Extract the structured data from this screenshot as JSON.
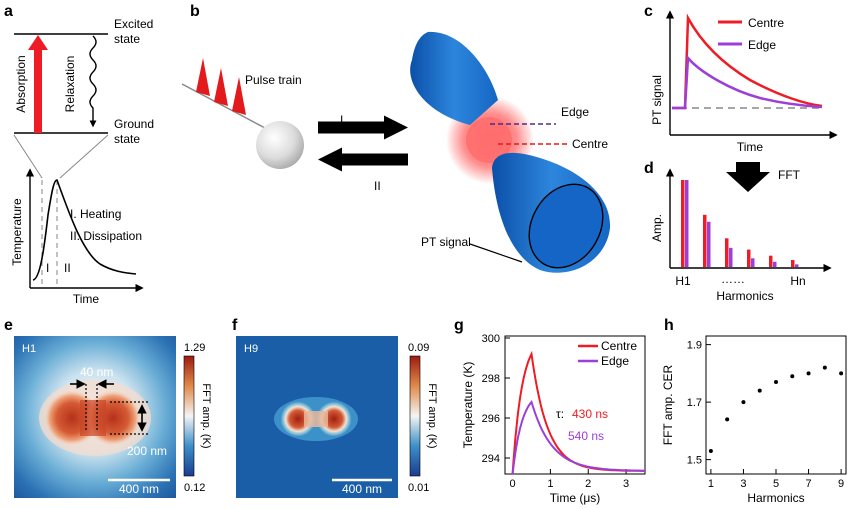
{
  "panels": {
    "a": "a",
    "b": "b",
    "c": "c",
    "d": "d",
    "e": "e",
    "f": "f",
    "g": "g",
    "h": "h"
  },
  "a": {
    "excited_1": "Excited",
    "excited_2": "state",
    "ground_1": "Ground",
    "ground_2": "state",
    "absorption": "Absorption",
    "relaxation": "Relaxation",
    "ylabel": "Temperature",
    "xlabel": "Time",
    "heating": "I. Heating",
    "dissipation": "II. Dissipation",
    "mark1": "I",
    "mark2": "II"
  },
  "b": {
    "pulse_train": "Pulse train",
    "arrow1": "I",
    "arrow2": "II",
    "edge": "Edge",
    "centre": "Centre",
    "pt_signal": "PT signal"
  },
  "c": {
    "ylabel": "PT signal",
    "xlabel": "Time",
    "series": [
      {
        "name": "Centre",
        "color": "#ee1c25"
      },
      {
        "name": "Edge",
        "color": "#9b3fd8"
      }
    ]
  },
  "d": {
    "fft": "FFT",
    "ylabel": "Amp.",
    "xlabel": "Harmonics",
    "tick_first": "H1",
    "dots": "……",
    "tick_last": "Hn",
    "chart_data": {
      "type": "bar",
      "categories": [
        "H1",
        "H2",
        "H3",
        "H4",
        "H5",
        "H6"
      ],
      "series": [
        {
          "name": "Centre",
          "color": "#ee1c25",
          "values": [
            1.0,
            0.6,
            0.33,
            0.2,
            0.13,
            0.08
          ]
        },
        {
          "name": "Edge",
          "color": "#9b3fd8",
          "values": [
            1.0,
            0.52,
            0.22,
            0.1,
            0.06,
            0.03
          ]
        }
      ]
    }
  },
  "e": {
    "tag": "H1",
    "cbar_max": "1.29",
    "cbar_min": "0.12",
    "cbar_label": "FFT amp. (K)",
    "dim_width": "40 nm",
    "dim_height": "200 nm",
    "scalebar": "400 nm"
  },
  "f": {
    "tag": "H9",
    "cbar_max": "0.09",
    "cbar_min": "0.01",
    "cbar_label": "FFT amp. (K)",
    "scalebar": "400 nm"
  },
  "g": {
    "ylabel": "Temperature (K)",
    "xlabel": "Time (μs)",
    "tau_label": "τ:",
    "tau_centre": "430 ns",
    "tau_edge": "540 ns",
    "chart_data": {
      "type": "line",
      "xlim": [
        -0.2,
        3.5
      ],
      "ylim": [
        293.2,
        300.1
      ],
      "xticks": [
        "0",
        "1",
        "2",
        "3"
      ],
      "yticks": [
        "294",
        "296",
        "298",
        "300"
      ],
      "series": [
        {
          "name": "Centre",
          "color": "#ee1c25",
          "rise_end": [
            0.5,
            299.2
          ],
          "baseline": 293.2,
          "tau_us": 0.43
        },
        {
          "name": "Edge",
          "color": "#9b3fd8",
          "rise_end": [
            0.5,
            296.8
          ],
          "baseline": 293.2,
          "tau_us": 0.54
        }
      ]
    }
  },
  "h": {
    "ylabel": "FFT amp. CER",
    "xlabel": "Harmonics",
    "chart_data": {
      "type": "scatter",
      "xlim": [
        0.7,
        9.3
      ],
      "ylim": [
        1.45,
        1.93
      ],
      "xticks": [
        "1",
        "3",
        "5",
        "7",
        "9"
      ],
      "yticks": [
        "1.5",
        "1.7",
        "1.9"
      ],
      "x": [
        1,
        2,
        3,
        4,
        5,
        6,
        7,
        8,
        9
      ],
      "y": [
        1.53,
        1.64,
        1.7,
        1.74,
        1.77,
        1.79,
        1.8,
        1.82,
        1.8
      ]
    }
  }
}
